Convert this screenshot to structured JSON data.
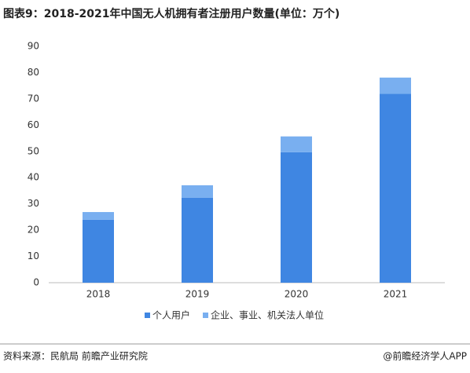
{
  "chart_data": {
    "type": "stacked_bar",
    "title": "图表9：2018-2021年中国无人机拥有者注册用户数量(单位：万个)",
    "categories": [
      "2018",
      "2019",
      "2020",
      "2021"
    ],
    "series": [
      {
        "name": "个人用户",
        "color": "#3f86e2",
        "values": [
          24,
          32.3,
          49.7,
          71.9
        ]
      },
      {
        "name": "企业、事业、机关法人单位",
        "color": "#79aff0",
        "values": [
          2.9,
          4.8,
          6,
          6.2
        ]
      }
    ],
    "ylim": [
      0,
      90
    ],
    "yticks": [
      0,
      10,
      20,
      30,
      40,
      50,
      60,
      70,
      80,
      90
    ],
    "grid": false,
    "source": "资料来源：民航局 前瞻产业研究院",
    "credit": "@前瞻经济学人APP"
  }
}
